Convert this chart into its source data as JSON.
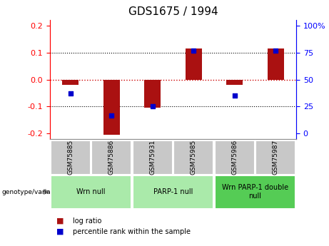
{
  "title": "GDS1675 / 1994",
  "samples": [
    "GSM75885",
    "GSM75886",
    "GSM75931",
    "GSM75985",
    "GSM75986",
    "GSM75987"
  ],
  "log_ratio": [
    -0.02,
    -0.205,
    -0.105,
    0.115,
    -0.02,
    0.115
  ],
  "percentile_rank": [
    37,
    17,
    25,
    77,
    35,
    77
  ],
  "groups": [
    {
      "label": "Wrn null",
      "start": 0,
      "end": 2,
      "color": "#AAEAAA"
    },
    {
      "label": "PARP-1 null",
      "start": 2,
      "end": 4,
      "color": "#AAEAAA"
    },
    {
      "label": "Wrn PARP-1 double\nnull",
      "start": 4,
      "end": 6,
      "color": "#55CC55"
    }
  ],
  "ylim": [
    -0.22,
    0.22
  ],
  "yticks_left": [
    -0.2,
    -0.1,
    0.0,
    0.1,
    0.2
  ],
  "yticks_right": [
    0,
    25,
    50,
    75,
    100
  ],
  "bar_color": "#AA1111",
  "dot_color": "#0000CC",
  "zero_line_color": "#CC0000",
  "grid_color": "#000000",
  "bg_color": "#FFFFFF",
  "plot_bg": "#FFFFFF",
  "sample_bg": "#C8C8C8",
  "bar_width": 0.4,
  "dot_size": 25,
  "title_fontsize": 11,
  "tick_fontsize": 8,
  "sample_fontsize": 6.5,
  "group_fontsize": 7,
  "legend_fontsize": 7
}
